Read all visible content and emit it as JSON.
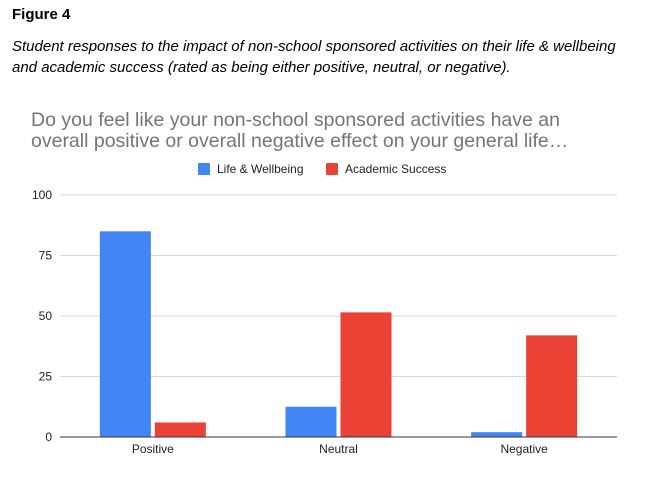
{
  "figure": {
    "label": "Figure 4",
    "caption": "Student responses to the impact of non-school sponsored activities on their life & wellbeing and academic success (rated as being either positive, neutral, or negative)."
  },
  "chart_data": {
    "type": "bar",
    "title_lines": [
      "Do you feel like your non-school sponsored activities have an",
      "overall positive or overall negative effect on your general life…"
    ],
    "categories": [
      "Positive",
      "Neutral",
      "Negative"
    ],
    "series": [
      {
        "name": "Life & Wellbeing",
        "color": "#4285f4",
        "values": [
          85,
          12.5,
          2
        ]
      },
      {
        "name": "Academic Success",
        "color": "#ea4335",
        "values": [
          6,
          51.5,
          42
        ]
      }
    ],
    "ylim": [
      0,
      100
    ],
    "yticks": [
      0,
      25,
      50,
      75,
      100
    ],
    "grid": true,
    "legend_position": "top"
  }
}
